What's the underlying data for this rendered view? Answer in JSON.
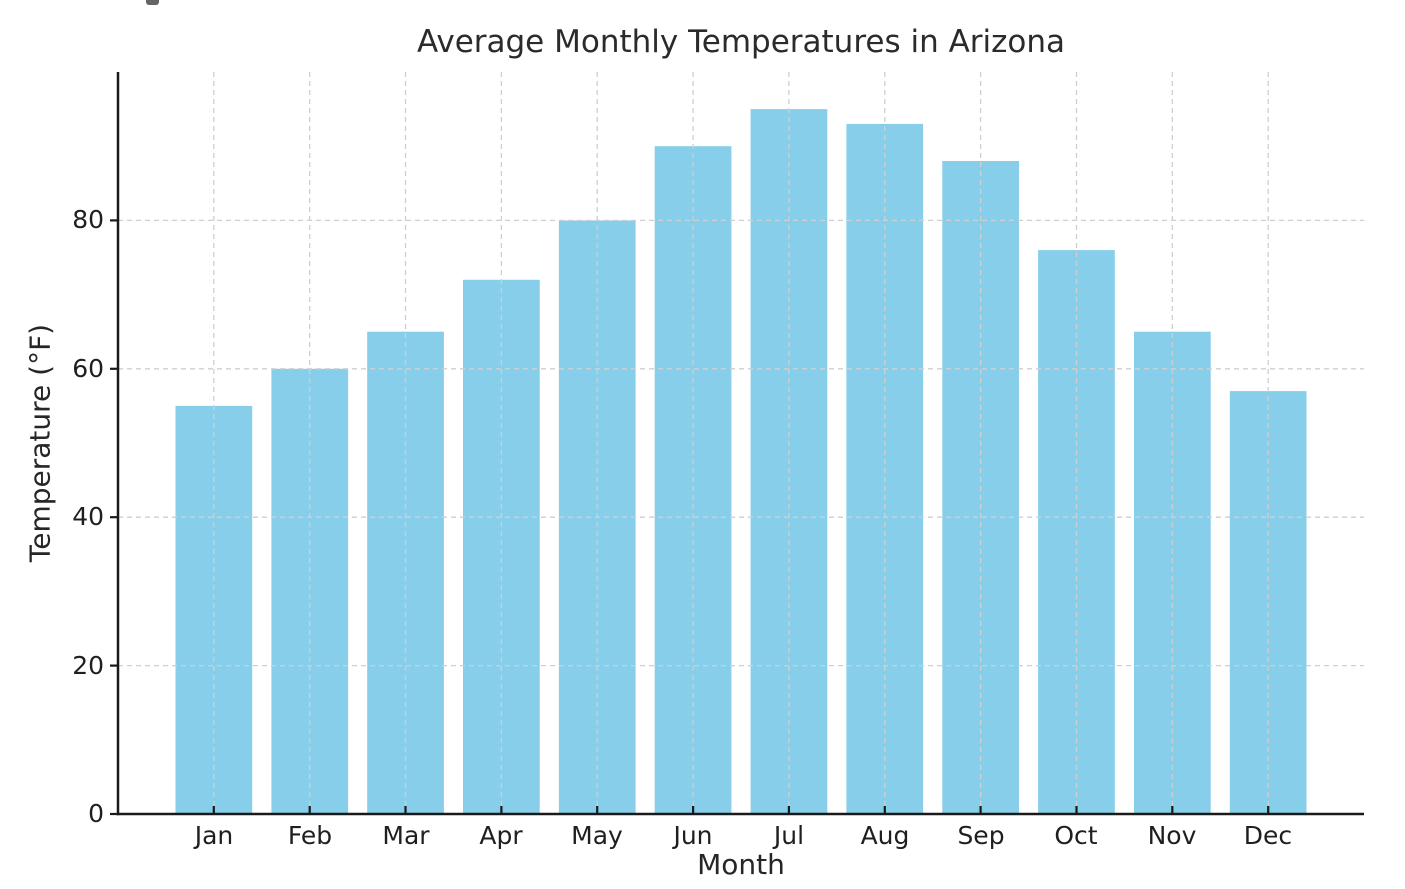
{
  "chart_data": {
    "type": "bar",
    "title": "Average Monthly Temperatures in Arizona",
    "xlabel": "Month",
    "ylabel": "Temperature (°F)",
    "categories": [
      "Jan",
      "Feb",
      "Mar",
      "Apr",
      "May",
      "Jun",
      "Jul",
      "Aug",
      "Sep",
      "Oct",
      "Nov",
      "Dec"
    ],
    "values": [
      55,
      60,
      65,
      72,
      80,
      90,
      95,
      93,
      88,
      76,
      65,
      57
    ],
    "ylim": [
      0,
      100
    ],
    "yticks": [
      0,
      20,
      40,
      60,
      80
    ],
    "ytick_labels": [
      "0",
      "20",
      "40",
      "60",
      "80"
    ],
    "bar_color": "#87CEEB",
    "grid": true,
    "grid_line_style": "dashed",
    "grid_color": "#cfcfcf",
    "axis_color": "#1a1a1a",
    "text_color": "#262626",
    "background_color": "#ffffff",
    "legend_position": "none"
  }
}
